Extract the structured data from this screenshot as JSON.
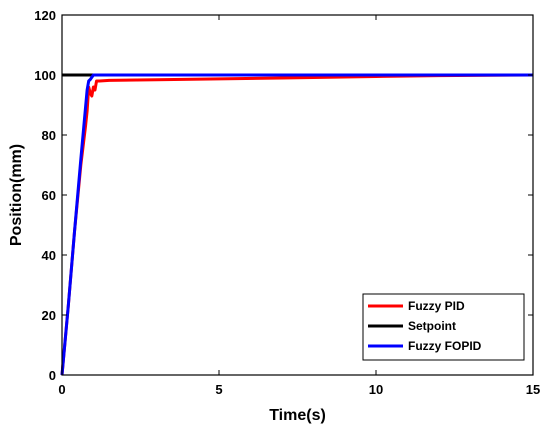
{
  "chart_data": {
    "type": "line",
    "title": "",
    "xlabel": "Time(s)",
    "ylabel": "Position(mm)",
    "xlim": [
      0,
      15
    ],
    "ylim": [
      0,
      120
    ],
    "xticks": [
      0,
      5,
      10,
      15
    ],
    "yticks": [
      0,
      20,
      40,
      60,
      80,
      100,
      120
    ],
    "grid": false,
    "legend_position": "bottom-right",
    "series": [
      {
        "name": "Fuzzy PID",
        "color": "#ff0000",
        "x": [
          0,
          0.2,
          0.4,
          0.6,
          0.75,
          0.8,
          0.85,
          0.9,
          0.95,
          1.0,
          1.05,
          1.1,
          1.2,
          1.5,
          3,
          5,
          7,
          10,
          12,
          15
        ],
        "y": [
          0,
          23,
          48,
          70,
          83,
          88,
          96,
          94,
          93,
          96,
          95,
          98,
          98,
          98.2,
          98.4,
          98.7,
          99.0,
          99.5,
          99.8,
          100
        ]
      },
      {
        "name": "Setpoint",
        "color": "#000000",
        "x": [
          0,
          15
        ],
        "y": [
          100,
          100
        ]
      },
      {
        "name": "Fuzzy FOPID",
        "color": "#0000ff",
        "x": [
          0,
          0.2,
          0.4,
          0.6,
          0.8,
          0.85,
          0.9,
          1.0,
          1.5,
          5,
          10,
          15
        ],
        "y": [
          0,
          23,
          48,
          72,
          95,
          98,
          98.5,
          100,
          100,
          100,
          100,
          100
        ]
      }
    ]
  }
}
